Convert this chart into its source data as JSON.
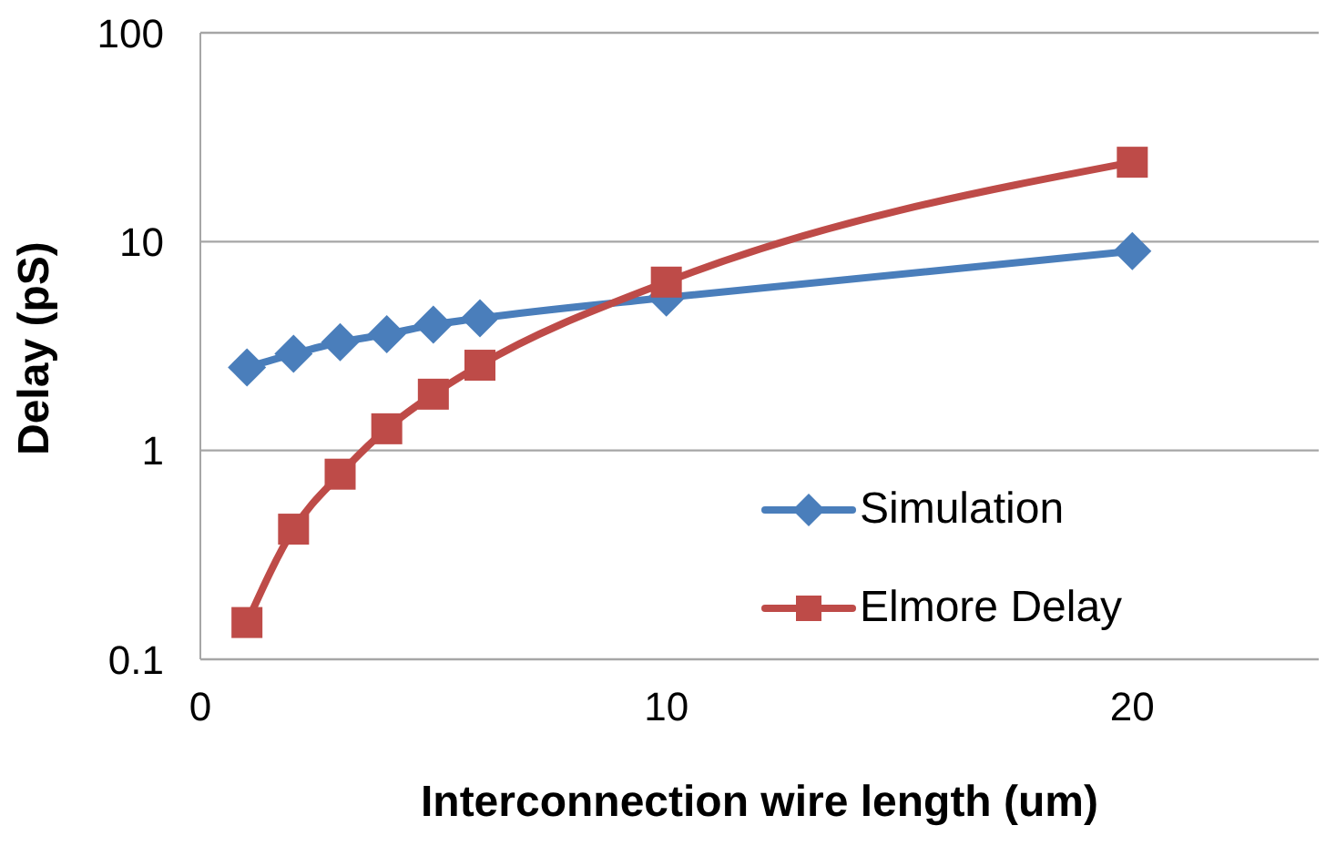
{
  "chart_data": {
    "type": "line",
    "xlabel": "Interconnection wire length (um)",
    "ylabel": "Delay (pS)",
    "x": [
      1,
      2,
      3,
      4,
      5,
      6,
      10,
      20
    ],
    "series": [
      {
        "name": "Simulation",
        "color": "#4a7ebb",
        "marker": "diamond",
        "values": [
          2.5,
          2.9,
          3.3,
          3.6,
          4.0,
          4.3,
          5.4,
          9.0
        ]
      },
      {
        "name": "Elmore Delay",
        "color": "#be4b48",
        "marker": "square",
        "values": [
          0.15,
          0.42,
          0.77,
          1.27,
          1.86,
          2.56,
          6.4,
          24
        ]
      }
    ],
    "log": "y",
    "xlim": [
      0,
      24
    ],
    "xticks": [
      0,
      10,
      20
    ],
    "ylim": [
      0.1,
      100
    ],
    "yticks": [
      0.1,
      1,
      10,
      100
    ],
    "grid": "y",
    "legend": "bottom right"
  }
}
